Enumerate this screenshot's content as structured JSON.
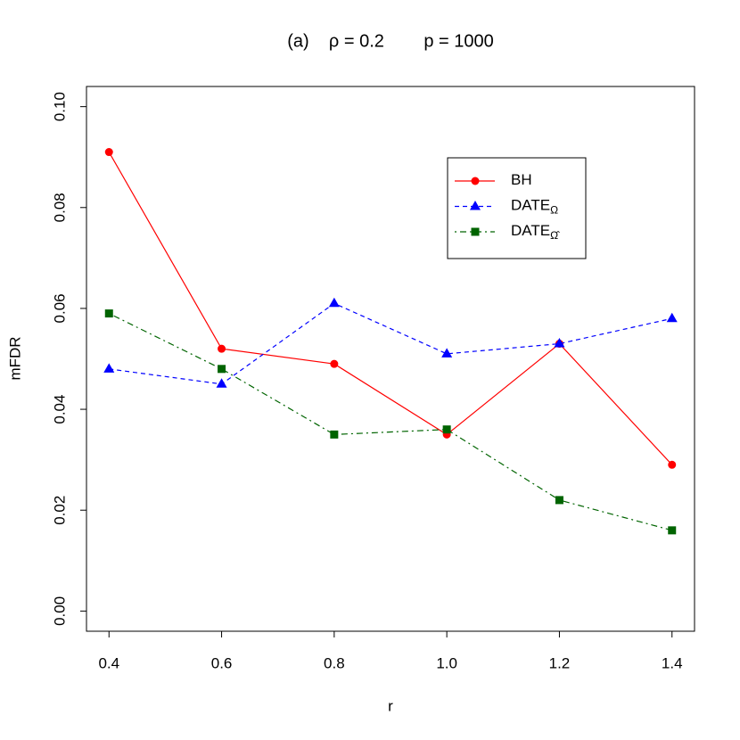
{
  "chart_data": {
    "type": "line",
    "title": "(a)    ρ = 0.2        p = 1000",
    "x_label": "r",
    "y_label": "mFDR",
    "x": [
      0.4,
      0.6,
      0.8,
      1.0,
      1.2,
      1.4
    ],
    "series": [
      {
        "name": "BH",
        "color": "#ff0000",
        "marker": "circle",
        "line_style": "solid",
        "values": [
          0.091,
          0.052,
          0.049,
          0.035,
          0.053,
          0.029
        ]
      },
      {
        "name": "DATE",
        "name_subscript": "Ω",
        "color": "#0000ff",
        "marker": "triangle",
        "line_style": "dashed",
        "values": [
          0.048,
          0.045,
          0.061,
          0.051,
          0.053,
          0.058
        ]
      },
      {
        "name": "DATE",
        "name_subscript": "Ω̂",
        "color": "#006400",
        "marker": "square",
        "line_style": "dotdash",
        "values": [
          0.059,
          0.048,
          0.035,
          0.036,
          0.022,
          0.016
        ]
      }
    ],
    "xlim": [
      0.36,
      1.44
    ],
    "xticks": [
      0.4,
      0.6,
      0.8,
      {
        "value": 1.0,
        "label": "1.0"
      },
      1.2,
      1.4
    ],
    "ylim": [
      -0.004,
      0.104
    ],
    "yticks": [
      {
        "value": 0,
        "label": "0.00"
      },
      {
        "value": 0.02,
        "label": "0.02"
      },
      {
        "value": 0.04,
        "label": "0.04"
      },
      {
        "value": 0.06,
        "label": "0.06"
      },
      {
        "value": 0.08,
        "label": "0.08"
      },
      {
        "value": 0.1,
        "label": "0.10"
      }
    ],
    "legend_position": "top-right"
  }
}
